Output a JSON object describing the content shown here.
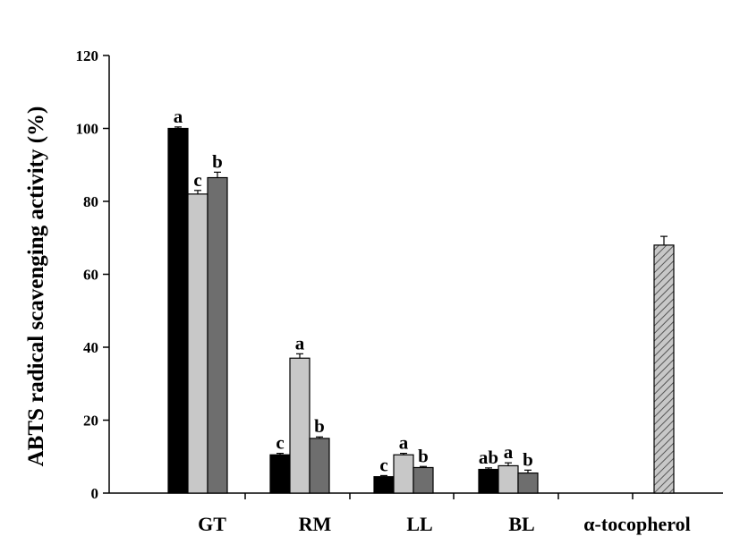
{
  "chart_data": {
    "type": "bar",
    "ylabel": "ABTS radical scavenging activity (%)",
    "xlabel": "",
    "ylim": [
      0,
      120
    ],
    "yticks": [
      0,
      20,
      40,
      60,
      80,
      100,
      120
    ],
    "grid": false,
    "categories": [
      "GT",
      "RM",
      "LL",
      "BL",
      "α-tocopherol"
    ],
    "series": [
      {
        "color": "#000000",
        "values": [
          100,
          10.5,
          4.5,
          6.5,
          null
        ],
        "errors": [
          0.4,
          0.4,
          0.3,
          0.4,
          null
        ],
        "letters": [
          "a",
          "c",
          "c",
          "ab",
          null
        ]
      },
      {
        "color": "#c8c8c8",
        "values": [
          82,
          37,
          10.5,
          7.5,
          null
        ],
        "errors": [
          1.0,
          1.2,
          0.4,
          0.8,
          null
        ],
        "letters": [
          "c",
          "a",
          "a",
          "a",
          null
        ]
      },
      {
        "color": "#6e6e6e",
        "values": [
          86.5,
          15,
          7,
          5.5,
          null
        ],
        "errors": [
          1.5,
          0.4,
          0.3,
          0.8,
          null
        ],
        "letters": [
          "b",
          "b",
          "b",
          "b",
          null
        ]
      },
      {
        "color": "#bdbdbd",
        "pattern": "diagonal-hatch",
        "values": [
          null,
          null,
          null,
          null,
          68
        ],
        "errors": [
          null,
          null,
          null,
          null,
          2.4
        ],
        "letters": [
          null,
          null,
          null,
          null,
          null
        ]
      }
    ]
  }
}
